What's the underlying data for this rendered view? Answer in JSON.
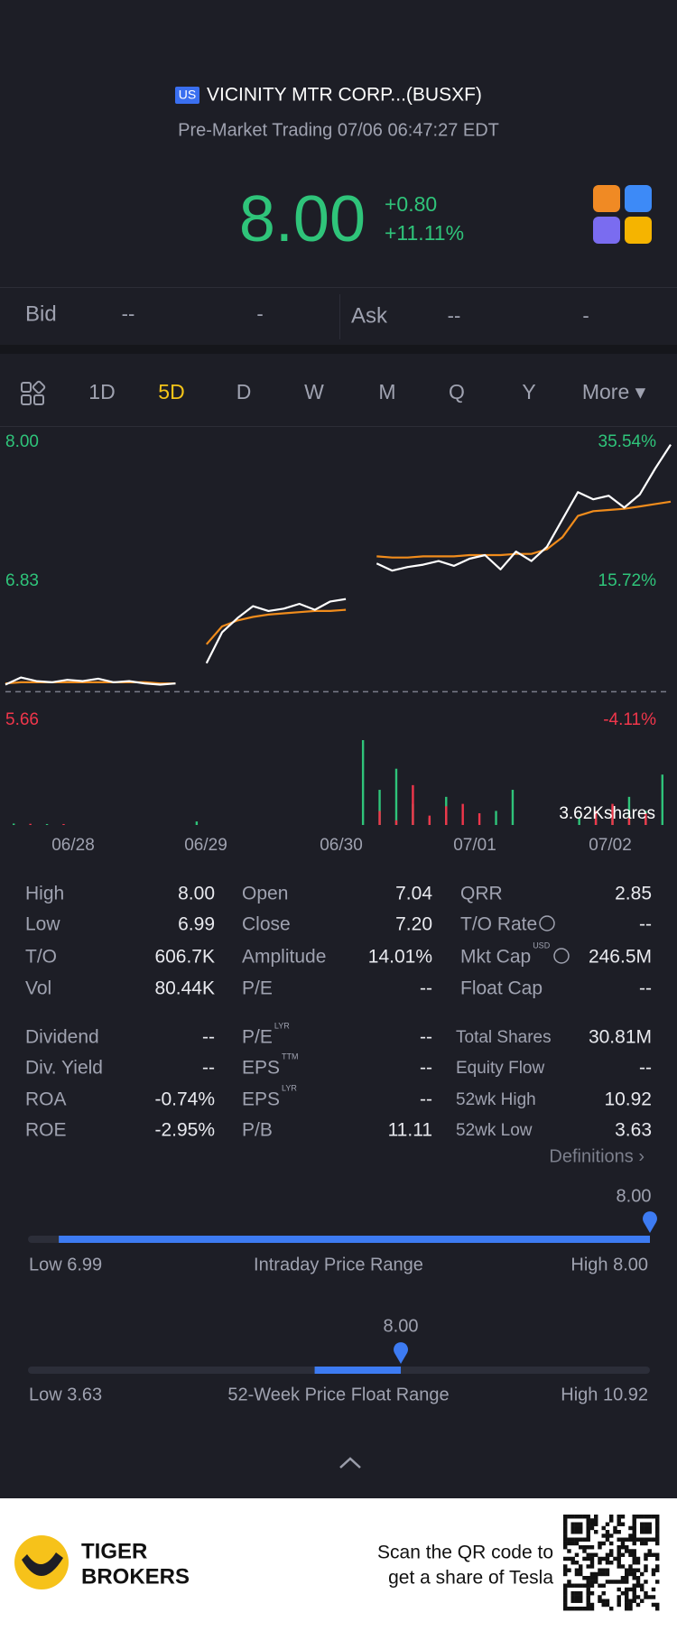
{
  "header": {
    "market": "US",
    "title": "VICINITY MTR CORP...(BUSXF)",
    "subtitle": "Pre-Market Trading 07/06 06:47:27 EDT"
  },
  "quote": {
    "price": "8.00",
    "change": "+0.80",
    "change_pct": "+11.11%"
  },
  "bid_ask": {
    "bid_label": "Bid",
    "bid_price": "--",
    "bid_size": "-",
    "ask_label": "Ask",
    "ask_price": "--",
    "ask_size": "-"
  },
  "tabs": {
    "items": [
      "1D",
      "5D",
      "D",
      "W",
      "M",
      "Q",
      "Y",
      "More ▾"
    ],
    "active": 1
  },
  "chart": {
    "type": "line",
    "x_labels": [
      "06/28",
      "06/29",
      "06/30",
      "07/01",
      "07/02"
    ],
    "ylim": [
      5.66,
      8.0
    ],
    "yticks": [
      {
        "value": 8.0,
        "label": "8.00"
      },
      {
        "value": 6.83,
        "label": "6.83"
      },
      {
        "value": 5.66,
        "label": "5.66"
      }
    ],
    "y2lim": [
      -4.11,
      35.54
    ],
    "y2ticks": [
      {
        "value": 35.54,
        "label": "35.54%"
      },
      {
        "value": 15.72,
        "label": "15.72%"
      },
      {
        "value": -4.11,
        "label": "-4.11%"
      }
    ],
    "base_price": 5.9,
    "series": [
      {
        "color": "#ffffff",
        "values": [
          5.96,
          6.02,
          5.99,
          5.98,
          6.0,
          5.99,
          6.01,
          5.98,
          5.99,
          5.97,
          5.96,
          5.97,
          null,
          6.14,
          6.4,
          6.52,
          6.62,
          6.58,
          6.6,
          6.64,
          6.59,
          6.66,
          6.68,
          null,
          6.98,
          6.92,
          6.95,
          6.97,
          7.0,
          6.96,
          7.02,
          7.05,
          6.93,
          7.08,
          7.0,
          7.12,
          7.35,
          7.58,
          7.52,
          7.55,
          7.45,
          7.56,
          7.78,
          7.98
        ]
      },
      {
        "color": "#f08c1c",
        "values": [
          5.97,
          5.98,
          5.98,
          5.98,
          5.98,
          5.98,
          5.98,
          5.98,
          5.98,
          5.98,
          5.97,
          5.97,
          null,
          6.3,
          6.45,
          6.5,
          6.53,
          6.55,
          6.56,
          6.57,
          6.58,
          6.58,
          6.59,
          null,
          7.04,
          7.03,
          7.03,
          7.04,
          7.04,
          7.04,
          7.05,
          7.05,
          7.05,
          7.06,
          7.06,
          7.1,
          7.2,
          7.38,
          7.42,
          7.43,
          7.44,
          7.46,
          7.48,
          7.5
        ]
      }
    ],
    "volume": {
      "label": {
        "value": 3620,
        "label": "3.62Kshares"
      },
      "ylim": [
        0,
        3620
      ],
      "series": [
        {
          "color": "#2fc47a",
          "values": [
            60,
            0,
            40,
            0,
            0,
            0,
            0,
            0,
            0,
            0,
            0,
            150,
            0,
            0,
            0,
            0,
            0,
            0,
            0,
            0,
            0,
            3620,
            1500,
            2400,
            900,
            300,
            1200,
            0,
            0,
            600,
            1500,
            0,
            0,
            0,
            300,
            400,
            700,
            1200,
            600,
            2150
          ]
        },
        {
          "color": "#f0364b",
          "values": [
            0,
            50,
            0,
            40,
            0,
            0,
            0,
            0,
            0,
            0,
            0,
            0,
            0,
            0,
            0,
            0,
            0,
            0,
            0,
            0,
            0,
            0,
            600,
            200,
            1700,
            400,
            800,
            900,
            500,
            0,
            0,
            0,
            0,
            0,
            0,
            600,
            900,
            300,
            500,
            0
          ]
        }
      ]
    }
  },
  "stats": {
    "blocks": [
      [
        [
          {
            "label": "High",
            "value": "8.00"
          },
          {
            "label": "Open",
            "value": "7.04"
          },
          {
            "label": "QRR",
            "value": "2.85"
          }
        ],
        [
          {
            "label": "Low",
            "value": "6.99"
          },
          {
            "label": "Close",
            "value": "7.20"
          },
          {
            "label": "T/O Rate",
            "value": "--"
          }
        ],
        [
          {
            "label": "T/O",
            "value": "606.7K"
          },
          {
            "label": "Amplitude",
            "value": "14.01%"
          },
          {
            "label": "Mkt Cap",
            "sup": "USD",
            "value": "246.5M"
          }
        ],
        [
          {
            "label": "Vol",
            "value": "80.44K"
          },
          {
            "label": "P/E",
            "value": "--"
          },
          {
            "label": "Float Cap",
            "value": "--"
          }
        ]
      ],
      [
        [
          {
            "label": "Dividend",
            "value": "--"
          },
          {
            "label": "P/E",
            "sup": "LYR",
            "value": "--"
          },
          {
            "label": "Total Shares",
            "value": "30.81M"
          }
        ],
        [
          {
            "label": "Div. Yield",
            "value": "--"
          },
          {
            "label": "EPS",
            "sup": "TTM",
            "value": "--"
          },
          {
            "label": "Equity Flow",
            "value": "--"
          }
        ],
        [
          {
            "label": "ROA",
            "value": "-0.74%"
          },
          {
            "label": "EPS",
            "sup": "LYR",
            "value": "--"
          },
          {
            "label": "52wk High",
            "value": "10.92"
          }
        ],
        [
          {
            "label": "ROE",
            "value": "-2.95%"
          },
          {
            "label": "P/B",
            "value": "11.11"
          },
          {
            "label": "52wk Low",
            "value": "3.63"
          }
        ]
      ]
    ],
    "definitions": "Definitions ›"
  },
  "ranges": [
    {
      "low": 6.99,
      "high": 8.0,
      "from": 7.04,
      "current": 8.0,
      "current_label": "8.00",
      "low_label": "Low 6.99",
      "title": "Intraday Price Range",
      "high_label": "High 8.00"
    },
    {
      "low": 3.63,
      "high": 10.92,
      "from": 6.99,
      "current": 8.0,
      "current_label": "8.00",
      "low_label": "Low 3.63",
      "title": "52-Week Price Float Range",
      "high_label": "High 10.92"
    }
  ],
  "footer": {
    "brand": [
      "TIGER",
      "BROKERS"
    ],
    "promo": [
      "Scan the QR code to",
      "get a share of Tesla"
    ]
  }
}
